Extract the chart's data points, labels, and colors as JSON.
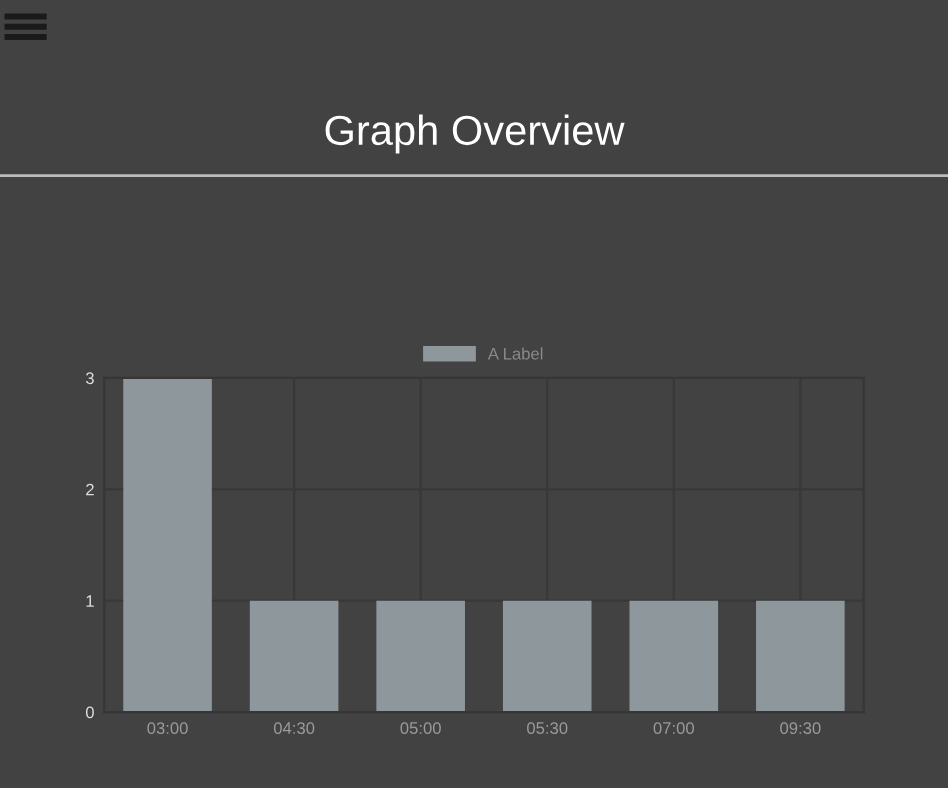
{
  "chart_data": {
    "type": "bar",
    "title": "Graph Overview",
    "categories": [
      "03:00",
      "04:30",
      "05:00",
      "05:30",
      "07:00",
      "09:30"
    ],
    "series": [
      {
        "name": "A Label",
        "color": "#8e979b",
        "values": [
          3,
          1,
          1,
          1,
          1,
          1
        ]
      }
    ],
    "ylim": [
      0,
      3
    ],
    "yticks": [
      0,
      1,
      2,
      3
    ],
    "grid": true,
    "legend": "top"
  }
}
